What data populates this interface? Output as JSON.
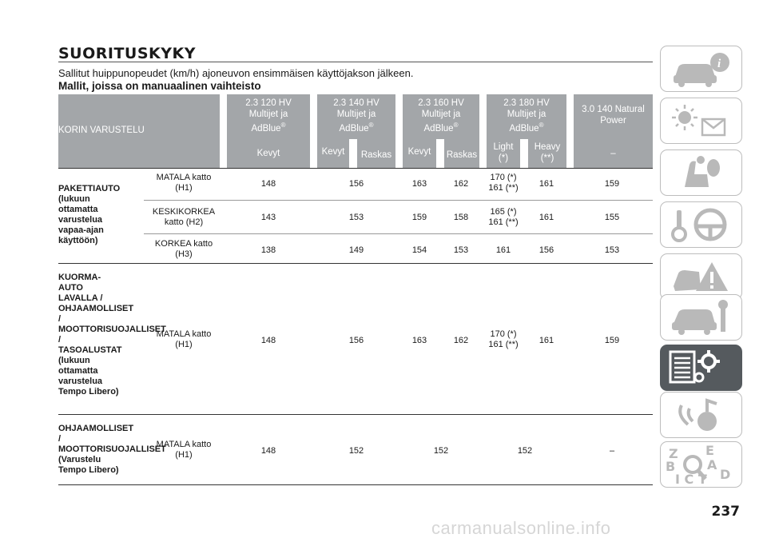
{
  "title": "SUORITUSKYKY",
  "subtitle": "Sallitut huippunopeudet (km/h) ajoneuvon ensimmäisen käyttöjakson jälkeen.",
  "section_heading": "Mallit, joissa on manuaalinen vaihteisto",
  "table": {
    "corner_label": "KORIN VARUSTELU",
    "engine_headers": [
      {
        "line1": "2.3 120 HV",
        "line2": "Multijet ja",
        "line3": "AdBlue",
        "mark": "®"
      },
      {
        "line1": "2.3 140 HV",
        "line2": "Multijet ja",
        "line3": "AdBlue",
        "mark": "®"
      },
      {
        "line1": "2.3 160 HV",
        "line2": "Multijet ja",
        "line3": "AdBlue",
        "mark": "®"
      },
      {
        "line1": "2.3 180 HV",
        "line2": "Multijet ja",
        "line3": "AdBlue",
        "mark": "®"
      },
      {
        "line1": "3.0 140 Natural",
        "line2": "Power",
        "line3": "",
        "mark": ""
      }
    ],
    "sub_headers": {
      "e120": "Kevyt",
      "e140_light": "Kevyt",
      "e140_heavy": "Raskas",
      "e160_light": "Kevyt",
      "e160_heavy": "Raskas",
      "e180_light": "Light\n(*)",
      "e180_heavy": "Heavy\n(**)",
      "natural": "–"
    },
    "groups": {
      "pakettiauto": {
        "label": "PAKETTIAUTO\n(lukuun\nottamatta\nvarustelua\nvapaa-ajan\nkäyttöön)",
        "rows": [
          {
            "roof": "MATALA katto\n(H1)",
            "v": [
              "148",
              "156",
              "163",
              "162",
              "170 (*)\n161 (**)",
              "161",
              "159"
            ]
          },
          {
            "roof": "KESKIKORKEA\nkatto (H2)",
            "v": [
              "143",
              "153",
              "159",
              "158",
              "165 (*)\n161 (**)",
              "161",
              "155"
            ]
          },
          {
            "roof": "KORKEA katto\n(H3)",
            "v": [
              "138",
              "149",
              "154",
              "153",
              "161",
              "156",
              "153"
            ]
          }
        ]
      },
      "kuorma": {
        "label": "KUORMA-\nAUTO\nLAVALLA /\nOHJAAMOLLISET\n/\nMOOTTORISUOJALLISET\n/\nTASOALUSTAT\n(lukuun\nottamatta\nvarustelua\nTempo Libero)",
        "roof": "MATALA katto\n(H1)",
        "v": [
          "148",
          "156",
          "163",
          "162",
          "170 (*)\n161 (**)",
          "161",
          "159"
        ]
      },
      "ohjaamo": {
        "label": "OHJAAMOLLISET\n/\nMOOTTORISUOJALLISET\n(Varustelu\nTempo Libero)",
        "roof": "MATALA katto\n(H1)",
        "v": [
          "148",
          "152",
          "152",
          "152",
          "–"
        ]
      }
    }
  },
  "page_number": "237",
  "watermark": "carmanualsonline.info",
  "colors": {
    "header_bg": "#a3a6a9",
    "tab_active": "#555a5e",
    "tab_icon": "#b9b9b9"
  },
  "side_tabs": [
    {
      "icon": "car-info-icon",
      "active": false
    },
    {
      "icon": "warning-lights-icon",
      "active": false
    },
    {
      "icon": "airbag-seat-icon",
      "active": false
    },
    {
      "icon": "key-steering-wheel-icon",
      "active": false
    },
    {
      "icon": "warning-triangle-car-icon",
      "active": false
    },
    {
      "icon": "car-maintenance-icon",
      "active": false
    },
    {
      "icon": "technical-specs-icon",
      "active": true
    },
    {
      "icon": "multimedia-icon",
      "active": false
    },
    {
      "icon": "index-search-icon",
      "active": false
    }
  ]
}
